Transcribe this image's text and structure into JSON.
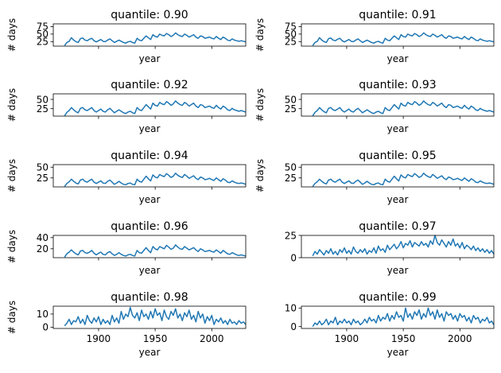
{
  "chart_data": [
    {
      "type": "line",
      "title": "quantile: 0.90",
      "xlabel": "year",
      "ylabel": "# days",
      "xlim": [
        1860,
        2030
      ],
      "ylim": [
        10,
        84
      ],
      "yticks": [
        25,
        50,
        75
      ],
      "xticks": [
        1900,
        1950,
        2000
      ],
      "show_xtick_labels": false,
      "color": "#1f77b4",
      "series": [
        {
          "x_start": 1870,
          "x_step": 2,
          "values": [
            12,
            22,
            26,
            38,
            30,
            25,
            22,
            35,
            37,
            30,
            28,
            33,
            36,
            28,
            24,
            28,
            32,
            26,
            25,
            30,
            34,
            28,
            22,
            26,
            30,
            26,
            22,
            20,
            24,
            26,
            22,
            20,
            36,
            30,
            28,
            36,
            44,
            38,
            32,
            48,
            42,
            40,
            50,
            46,
            44,
            52,
            48,
            42,
            46,
            54,
            48,
            44,
            42,
            50,
            46,
            40,
            44,
            48,
            40,
            36,
            44,
            42,
            36,
            38,
            40,
            36,
            34,
            42,
            36,
            32,
            40,
            36,
            30,
            28,
            34,
            30,
            28,
            26,
            28,
            26,
            24
          ]
        }
      ]
    },
    {
      "type": "line",
      "title": "quantile: 0.91",
      "xlabel": "year",
      "ylabel": "# days",
      "xlim": [
        1860,
        2030
      ],
      "ylim": [
        10,
        84
      ],
      "yticks": [
        25,
        50,
        75
      ],
      "xticks": [
        1900,
        1950,
        2000
      ],
      "show_xtick_labels": false,
      "color": "#1f77b4",
      "series": [
        {
          "x_start": 1870,
          "x_step": 2,
          "values": [
            12,
            22,
            26,
            38,
            30,
            25,
            22,
            35,
            37,
            30,
            28,
            33,
            36,
            28,
            24,
            28,
            32,
            26,
            25,
            30,
            34,
            28,
            22,
            26,
            30,
            26,
            22,
            20,
            24,
            26,
            22,
            20,
            36,
            30,
            28,
            36,
            44,
            38,
            32,
            48,
            42,
            40,
            50,
            46,
            44,
            52,
            48,
            42,
            46,
            54,
            48,
            44,
            42,
            50,
            46,
            40,
            44,
            48,
            40,
            36,
            44,
            42,
            36,
            38,
            40,
            36,
            34,
            42,
            36,
            32,
            40,
            36,
            30,
            28,
            34,
            30,
            28,
            26,
            28,
            26,
            24
          ]
        }
      ]
    },
    {
      "type": "line",
      "title": "quantile: 0.92",
      "xlabel": "year",
      "ylabel": "# days",
      "xlim": [
        1860,
        2030
      ],
      "ylim": [
        5,
        65
      ],
      "yticks": [
        25,
        50
      ],
      "xticks": [
        1900,
        1950,
        2000
      ],
      "show_xtick_labels": false,
      "color": "#1f77b4",
      "series": [
        {
          "x_start": 1870,
          "x_step": 2,
          "values": [
            6,
            15,
            20,
            28,
            22,
            17,
            14,
            26,
            28,
            22,
            20,
            24,
            28,
            20,
            16,
            20,
            24,
            18,
            16,
            22,
            26,
            20,
            14,
            18,
            22,
            18,
            14,
            12,
            16,
            18,
            14,
            12,
            28,
            22,
            20,
            28,
            36,
            30,
            24,
            40,
            34,
            32,
            42,
            38,
            36,
            44,
            40,
            34,
            38,
            46,
            40,
            36,
            34,
            42,
            38,
            32,
            36,
            40,
            32,
            28,
            36,
            34,
            28,
            30,
            32,
            28,
            26,
            34,
            28,
            24,
            32,
            28,
            22,
            20,
            26,
            22,
            20,
            18,
            20,
            18,
            16
          ]
        }
      ]
    },
    {
      "type": "line",
      "title": "quantile: 0.93",
      "xlabel": "year",
      "ylabel": "# days",
      "xlim": [
        1860,
        2030
      ],
      "ylim": [
        5,
        65
      ],
      "yticks": [
        25,
        50
      ],
      "xticks": [
        1900,
        1950,
        2000
      ],
      "show_xtick_labels": false,
      "color": "#1f77b4",
      "series": [
        {
          "x_start": 1870,
          "x_step": 2,
          "values": [
            6,
            15,
            20,
            28,
            22,
            17,
            14,
            26,
            28,
            22,
            20,
            24,
            28,
            20,
            16,
            20,
            24,
            18,
            16,
            22,
            26,
            20,
            14,
            18,
            22,
            18,
            14,
            12,
            16,
            18,
            14,
            12,
            28,
            22,
            20,
            28,
            36,
            30,
            24,
            40,
            34,
            32,
            42,
            38,
            36,
            44,
            40,
            34,
            38,
            46,
            40,
            36,
            34,
            42,
            38,
            32,
            36,
            40,
            32,
            28,
            36,
            34,
            28,
            30,
            32,
            28,
            26,
            34,
            28,
            24,
            32,
            28,
            22,
            20,
            26,
            22,
            20,
            18,
            20,
            18,
            16
          ]
        }
      ]
    },
    {
      "type": "line",
      "title": "quantile: 0.94",
      "xlabel": "year",
      "ylabel": "# days",
      "xlim": [
        1860,
        2030
      ],
      "ylim": [
        4,
        56
      ],
      "yticks": [
        25,
        50
      ],
      "xticks": [
        1900,
        1950,
        2000
      ],
      "show_xtick_labels": false,
      "color": "#1f77b4",
      "series": [
        {
          "x_start": 1870,
          "x_step": 2,
          "values": [
            5,
            12,
            16,
            22,
            17,
            13,
            11,
            20,
            22,
            17,
            15,
            19,
            22,
            15,
            12,
            15,
            18,
            13,
            12,
            17,
            20,
            15,
            10,
            13,
            17,
            13,
            10,
            9,
            12,
            13,
            10,
            9,
            22,
            17,
            15,
            22,
            29,
            23,
            18,
            32,
            27,
            25,
            33,
            30,
            28,
            35,
            31,
            26,
            29,
            36,
            31,
            28,
            26,
            33,
            29,
            24,
            27,
            30,
            24,
            21,
            27,
            25,
            21,
            22,
            24,
            21,
            19,
            25,
            21,
            17,
            23,
            20,
            15,
            14,
            18,
            15,
            13,
            12,
            13,
            12,
            10
          ]
        }
      ]
    },
    {
      "type": "line",
      "title": "quantile: 0.95",
      "xlabel": "year",
      "ylabel": "# days",
      "xlim": [
        1860,
        2030
      ],
      "ylim": [
        4,
        56
      ],
      "yticks": [
        25,
        50
      ],
      "xticks": [
        1900,
        1950,
        2000
      ],
      "show_xtick_labels": false,
      "color": "#1f77b4",
      "series": [
        {
          "x_start": 1870,
          "x_step": 2,
          "values": [
            5,
            12,
            16,
            22,
            17,
            13,
            11,
            20,
            22,
            17,
            15,
            19,
            22,
            15,
            12,
            15,
            18,
            13,
            12,
            17,
            20,
            15,
            10,
            13,
            17,
            13,
            10,
            9,
            12,
            13,
            10,
            9,
            22,
            17,
            15,
            22,
            29,
            23,
            18,
            32,
            27,
            25,
            33,
            30,
            28,
            35,
            31,
            26,
            29,
            36,
            31,
            28,
            26,
            33,
            29,
            24,
            27,
            30,
            24,
            21,
            27,
            25,
            21,
            22,
            24,
            21,
            19,
            25,
            21,
            17,
            23,
            20,
            15,
            14,
            18,
            15,
            13,
            12,
            13,
            12,
            10
          ]
        }
      ]
    },
    {
      "type": "line",
      "title": "quantile: 0.96",
      "xlabel": "year",
      "ylabel": "# days",
      "xlim": [
        1860,
        2030
      ],
      "ylim": [
        4,
        44
      ],
      "yticks": [
        20,
        40
      ],
      "xticks": [
        1900,
        1950,
        2000
      ],
      "show_xtick_labels": false,
      "color": "#1f77b4",
      "series": [
        {
          "x_start": 1870,
          "x_step": 2,
          "values": [
            5,
            11,
            14,
            18,
            14,
            11,
            9,
            16,
            17,
            13,
            12,
            14,
            17,
            12,
            9,
            12,
            14,
            10,
            9,
            13,
            15,
            11,
            8,
            10,
            13,
            10,
            8,
            7,
            9,
            10,
            8,
            7,
            17,
            13,
            12,
            17,
            22,
            17,
            13,
            24,
            20,
            18,
            24,
            22,
            20,
            26,
            23,
            19,
            21,
            27,
            23,
            20,
            19,
            24,
            21,
            18,
            20,
            22,
            18,
            15,
            20,
            18,
            15,
            16,
            17,
            15,
            14,
            18,
            15,
            12,
            17,
            14,
            11,
            10,
            13,
            11,
            9,
            8,
            9,
            8,
            7
          ]
        }
      ]
    },
    {
      "type": "line",
      "title": "quantile: 0.97",
      "xlabel": "year",
      "ylabel": "",
      "xlim": [
        1860,
        2030
      ],
      "ylim": [
        0,
        25
      ],
      "yticks": [
        0,
        25
      ],
      "xticks": [
        1900,
        1950,
        2000
      ],
      "show_xtick_labels": false,
      "color": "#1f77b4",
      "series": [
        {
          "x_start": 1870,
          "x_step": 2,
          "values": [
            2,
            7,
            4,
            9,
            6,
            3,
            8,
            5,
            10,
            4,
            7,
            3,
            9,
            6,
            11,
            5,
            8,
            4,
            12,
            7,
            5,
            9,
            6,
            10,
            4,
            8,
            6,
            11,
            5,
            13,
            8,
            10,
            6,
            14,
            9,
            12,
            15,
            10,
            13,
            18,
            11,
            16,
            14,
            19,
            12,
            17,
            15,
            13,
            18,
            14,
            16,
            12,
            19,
            15,
            25,
            17,
            14,
            20,
            16,
            12,
            18,
            14,
            21,
            13,
            16,
            11,
            17,
            10,
            14,
            12,
            9,
            13,
            8,
            11,
            7,
            10,
            6,
            9,
            5,
            8,
            4
          ]
        }
      ]
    },
    {
      "type": "line",
      "title": "quantile: 0.98",
      "xlabel": "year",
      "ylabel": "# days",
      "xlim": [
        1860,
        2030
      ],
      "ylim": [
        -1,
        16
      ],
      "yticks": [
        0,
        10
      ],
      "xticks": [
        1900,
        1950,
        2000
      ],
      "show_xtick_labels": true,
      "color": "#1f77b4",
      "series": [
        {
          "x_start": 1870,
          "x_step": 2,
          "values": [
            1,
            3,
            6,
            2,
            5,
            4,
            8,
            3,
            6,
            2,
            9,
            5,
            3,
            7,
            4,
            8,
            2,
            6,
            3,
            5,
            2,
            9,
            4,
            7,
            3,
            12,
            6,
            10,
            8,
            15,
            9,
            7,
            11,
            5,
            13,
            8,
            10,
            6,
            12,
            7,
            14,
            9,
            11,
            5,
            13,
            8,
            6,
            12,
            9,
            14,
            7,
            10,
            5,
            11,
            8,
            13,
            6,
            9,
            4,
            12,
            7,
            10,
            3,
            8,
            5,
            9,
            2,
            6,
            4,
            7,
            3,
            5,
            2,
            6,
            3,
            4,
            2,
            5,
            3,
            4,
            2
          ]
        }
      ]
    },
    {
      "type": "line",
      "title": "quantile: 0.99",
      "xlabel": "year",
      "ylabel": "",
      "xlim": [
        1860,
        2030
      ],
      "ylim": [
        -1,
        11
      ],
      "yticks": [
        0,
        10
      ],
      "xticks": [
        1900,
        1950,
        2000
      ],
      "show_xtick_labels": true,
      "color": "#1f77b4",
      "series": [
        {
          "x_start": 1870,
          "x_step": 2,
          "values": [
            0,
            2,
            1,
            3,
            1,
            2,
            4,
            1,
            3,
            2,
            5,
            1,
            3,
            2,
            4,
            2,
            3,
            1,
            4,
            2,
            3,
            1,
            2,
            4,
            2,
            5,
            3,
            4,
            2,
            6,
            3,
            5,
            4,
            7,
            3,
            6,
            4,
            8,
            5,
            6,
            3,
            10,
            5,
            7,
            4,
            8,
            6,
            9,
            4,
            7,
            5,
            10,
            6,
            8,
            4,
            9,
            5,
            7,
            3,
            8,
            6,
            7,
            4,
            6,
            3,
            7,
            5,
            6,
            3,
            5,
            2,
            6,
            4,
            5,
            2,
            4,
            3,
            5,
            2,
            3,
            1
          ]
        }
      ]
    }
  ]
}
